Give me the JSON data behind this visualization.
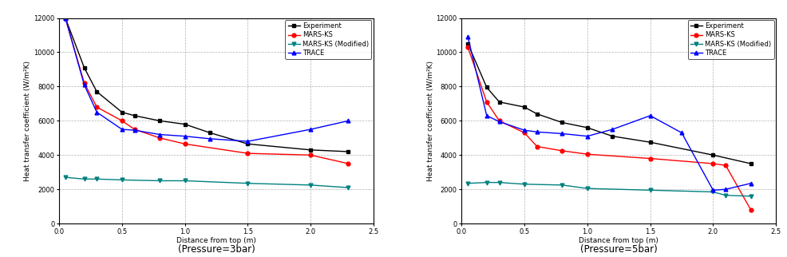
{
  "plot1": {
    "title": "(Pressure=3bar)",
    "experiment": {
      "x": [
        0.05,
        0.2,
        0.3,
        0.5,
        0.6,
        0.8,
        1.0,
        1.2,
        1.5,
        2.0,
        2.3
      ],
      "y": [
        12000,
        9100,
        7700,
        6500,
        6300,
        6000,
        5800,
        5300,
        4650,
        4300,
        4200
      ],
      "color": "#000000",
      "marker": "s",
      "label": "Experiment"
    },
    "mars_ks": {
      "x": [
        0.05,
        0.2,
        0.3,
        0.5,
        0.6,
        0.8,
        1.0,
        1.5,
        2.0,
        2.3
      ],
      "y": [
        12000,
        8200,
        6800,
        6000,
        5500,
        5000,
        4650,
        4100,
        4000,
        3500
      ],
      "color": "#ff0000",
      "marker": "o",
      "label": "MARS-KS"
    },
    "mars_ks_mod": {
      "x": [
        0.05,
        0.2,
        0.3,
        0.5,
        0.8,
        1.0,
        1.5,
        2.0,
        2.3
      ],
      "y": [
        2700,
        2600,
        2600,
        2550,
        2500,
        2500,
        2350,
        2250,
        2100
      ],
      "color": "#008080",
      "marker": "v",
      "label": "MARS-KS (Modified)"
    },
    "trace": {
      "x": [
        0.05,
        0.2,
        0.3,
        0.5,
        0.6,
        0.8,
        1.0,
        1.2,
        1.5,
        2.0,
        2.3
      ],
      "y": [
        12000,
        8100,
        6500,
        5500,
        5450,
        5200,
        5100,
        4950,
        4800,
        5500,
        6000
      ],
      "color": "#0000ff",
      "marker": "^",
      "label": "TRACE"
    }
  },
  "plot2": {
    "title": "(Pressure=5bar)",
    "experiment": {
      "x": [
        0.05,
        0.2,
        0.3,
        0.5,
        0.6,
        0.8,
        1.0,
        1.2,
        1.5,
        2.0,
        2.3
      ],
      "y": [
        10500,
        7950,
        7100,
        6800,
        6400,
        5900,
        5600,
        5100,
        4750,
        4000,
        3500
      ],
      "color": "#000000",
      "marker": "s",
      "label": "Experiment"
    },
    "mars_ks": {
      "x": [
        0.05,
        0.2,
        0.3,
        0.5,
        0.6,
        0.8,
        1.0,
        1.5,
        2.0,
        2.1,
        2.3
      ],
      "y": [
        10300,
        7100,
        6000,
        5300,
        4500,
        4250,
        4050,
        3800,
        3500,
        3400,
        800
      ],
      "color": "#ff0000",
      "marker": "o",
      "label": "MARS-KS"
    },
    "mars_ks_mod": {
      "x": [
        0.05,
        0.2,
        0.3,
        0.5,
        0.8,
        1.0,
        1.5,
        2.0,
        2.1,
        2.3
      ],
      "y": [
        2350,
        2400,
        2400,
        2300,
        2250,
        2050,
        1950,
        1850,
        1650,
        1600
      ],
      "color": "#008080",
      "marker": "v",
      "label": "MARS-KS (Modified)"
    },
    "trace": {
      "x": [
        0.05,
        0.2,
        0.3,
        0.5,
        0.6,
        0.8,
        1.0,
        1.2,
        1.5,
        1.75,
        2.0,
        2.1,
        2.3
      ],
      "y": [
        10900,
        6300,
        5950,
        5450,
        5350,
        5250,
        5100,
        5500,
        6300,
        5300,
        1950,
        2000,
        2350
      ],
      "color": "#0000ff",
      "marker": "^",
      "label": "TRACE"
    }
  },
  "ylabel": "Heat transfer coefficient (W/m²K)",
  "xlabel": "Distance from top (m)",
  "ylim": [
    0,
    12000
  ],
  "xlim": [
    0,
    2.5
  ],
  "yticks": [
    0,
    2000,
    4000,
    6000,
    8000,
    10000,
    12000
  ],
  "xticks": [
    0.0,
    0.5,
    1.0,
    1.5,
    2.0,
    2.5
  ],
  "legend_fontsize": 6,
  "axis_fontsize": 6.5,
  "tick_fontsize": 6,
  "title_fontsize": 8.5,
  "linewidth": 1.0,
  "markersize": 3.5
}
